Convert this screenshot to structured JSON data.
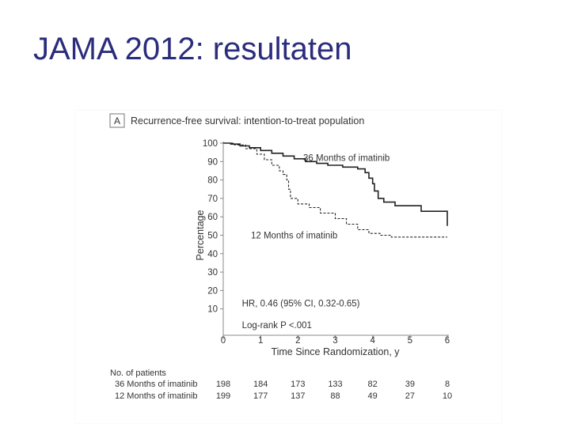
{
  "slide": {
    "title": "JAMA 2012: resultaten"
  },
  "chart_data": {
    "type": "line",
    "panel_label": "A",
    "title": "Recurrence-free survival: intention-to-treat population",
    "xlabel": "Time Since Randomization, y",
    "ylabel": "Percentage",
    "xlim": [
      0,
      6
    ],
    "ylim": [
      0,
      100
    ],
    "x_ticks": [
      0,
      1,
      2,
      3,
      4,
      5,
      6
    ],
    "y_ticks": [
      10,
      20,
      30,
      40,
      50,
      60,
      70,
      80,
      90,
      100
    ],
    "series": [
      {
        "name": "36 Months of imatinib",
        "line_style": "solid",
        "color": "#222222",
        "points": [
          [
            0,
            100
          ],
          [
            0.2,
            99.5
          ],
          [
            0.45,
            98.5
          ],
          [
            0.7,
            97.5
          ],
          [
            1.0,
            96
          ],
          [
            1.3,
            94.5
          ],
          [
            1.6,
            93
          ],
          [
            1.9,
            91.5
          ],
          [
            2.2,
            90
          ],
          [
            2.5,
            89
          ],
          [
            2.8,
            88
          ],
          [
            3.2,
            87
          ],
          [
            3.6,
            86
          ],
          [
            3.8,
            84
          ],
          [
            3.9,
            81
          ],
          [
            4.0,
            78
          ],
          [
            4.05,
            74
          ],
          [
            4.15,
            70
          ],
          [
            4.3,
            68
          ],
          [
            4.6,
            66
          ],
          [
            5.0,
            66
          ],
          [
            5.3,
            63
          ],
          [
            5.8,
            63
          ],
          [
            6.0,
            55
          ]
        ]
      },
      {
        "name": "12 Months of imatinib",
        "line_style": "dashed",
        "color": "#222222",
        "points": [
          [
            0,
            100
          ],
          [
            0.3,
            99
          ],
          [
            0.6,
            97
          ],
          [
            0.9,
            94
          ],
          [
            1.1,
            91
          ],
          [
            1.3,
            88
          ],
          [
            1.5,
            85
          ],
          [
            1.6,
            83
          ],
          [
            1.7,
            80
          ],
          [
            1.75,
            75
          ],
          [
            1.8,
            70
          ],
          [
            2.0,
            67
          ],
          [
            2.3,
            65
          ],
          [
            2.6,
            62
          ],
          [
            3.0,
            59
          ],
          [
            3.3,
            56
          ],
          [
            3.6,
            53
          ],
          [
            3.9,
            51
          ],
          [
            4.2,
            50
          ],
          [
            4.5,
            49
          ],
          [
            5.0,
            49
          ],
          [
            6.0,
            49
          ]
        ]
      }
    ],
    "annotations": {
      "hr": "HR, 0.46 (95% CI, 0.32-0.65)",
      "logrank": "Log-rank P <.001"
    },
    "risk_table": {
      "header": "No. of patients",
      "rows": [
        {
          "label": "36 Months of imatinib",
          "values": [
            198,
            184,
            173,
            133,
            82,
            39,
            8
          ]
        },
        {
          "label": "12 Months of imatinib",
          "values": [
            199,
            177,
            137,
            88,
            49,
            27,
            10
          ]
        }
      ]
    }
  }
}
